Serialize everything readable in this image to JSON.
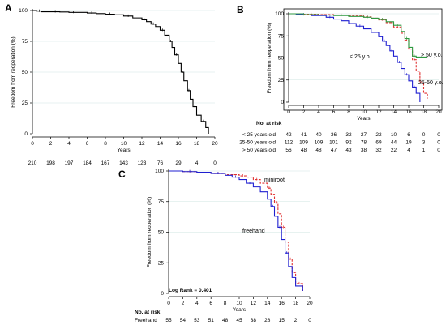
{
  "chart_data": [
    {
      "panel": "A",
      "type": "line",
      "step": true,
      "xlabel": "Years",
      "ylabel": "Freedom from reoperation (%)",
      "xlim": [
        0,
        20
      ],
      "ylim": [
        0,
        100
      ],
      "xticks": [
        0,
        2,
        4,
        6,
        8,
        10,
        12,
        14,
        16,
        18,
        20
      ],
      "yticks": [
        0,
        25,
        50,
        75,
        100
      ],
      "grid": true,
      "series": [
        {
          "color": "#000000",
          "x": [
            0,
            0.5,
            1,
            2,
            3,
            4,
            5,
            6,
            7,
            8,
            9,
            10,
            11,
            12,
            12.5,
            13,
            13.5,
            14,
            14.5,
            15,
            15.3,
            15.6,
            16,
            16.3,
            16.6,
            17,
            17.3,
            17.6,
            18,
            18.5,
            19,
            19.3
          ],
          "y": [
            100,
            99.5,
            99,
            99,
            98.8,
            98.5,
            98.5,
            98,
            97.5,
            97,
            96.5,
            95.5,
            94,
            92.5,
            91,
            89,
            87,
            84,
            80,
            75,
            70,
            64,
            57,
            50,
            43,
            35,
            28,
            22,
            15,
            10,
            5,
            0
          ]
        }
      ],
      "risk_table": {
        "header": "",
        "rows": [
          {
            "label": "",
            "values": [
              "210",
              "198",
              "197",
              "184",
              "167",
              "143",
              "123",
              "76",
              "29",
              "4",
              "0"
            ]
          }
        ]
      }
    },
    {
      "panel": "B",
      "type": "line",
      "step": true,
      "xlabel": "Years",
      "ylabel": "Freedom from reoperation (%)",
      "xlim": [
        0,
        20
      ],
      "ylim": [
        0,
        100
      ],
      "xticks": [
        0,
        2,
        4,
        6,
        8,
        10,
        12,
        14,
        16,
        18,
        20
      ],
      "yticks": [
        0,
        25,
        50,
        75,
        100
      ],
      "grid": true,
      "series": [
        {
          "name": "< 25 y.o.",
          "color": "#1f1fd0",
          "x": [
            0,
            1,
            3,
            5,
            6,
            7,
            8,
            9,
            10,
            11,
            12,
            12.5,
            13,
            13.5,
            14,
            14.5,
            15,
            15.5,
            16,
            16.5,
            17,
            17.5
          ],
          "y": [
            100,
            99,
            98,
            96,
            94,
            92,
            89,
            86,
            83,
            79,
            74,
            69,
            64,
            58,
            52,
            45,
            38,
            31,
            24,
            17,
            10,
            0
          ]
        },
        {
          "name": "25-50 y.o.",
          "color": "#e03030",
          "x": [
            0,
            2,
            4,
            6,
            8,
            10,
            11,
            12,
            13,
            14,
            15,
            15.5,
            16,
            16.5,
            17,
            17.5,
            18,
            18.5
          ],
          "y": [
            100,
            99.5,
            99,
            98.5,
            97.5,
            96.5,
            95,
            93,
            90,
            85,
            78,
            70,
            60,
            48,
            35,
            22,
            10,
            4
          ]
        },
        {
          "name": "> 50 y.o.",
          "color": "#2e9a40",
          "x": [
            0,
            2,
            4,
            6,
            8,
            10,
            11,
            12,
            13,
            14,
            15,
            15.5,
            16,
            16.5,
            17,
            18.5
          ],
          "y": [
            100,
            99,
            98.5,
            98,
            97,
            96,
            95,
            93.5,
            91,
            87,
            80,
            72,
            62,
            52,
            51,
            51
          ]
        }
      ],
      "risk_table": {
        "header": "No. at risk",
        "rows": [
          {
            "label": "< 25 years old",
            "values": [
              "42",
              "41",
              "40",
              "36",
              "32",
              "27",
              "22",
              "10",
              "6",
              "0",
              "0"
            ]
          },
          {
            "label": "25-50 years old",
            "values": [
              "112",
              "109",
              "109",
              "101",
              "92",
              "78",
              "69",
              "44",
              "19",
              "3",
              "0"
            ]
          },
          {
            "label": "> 50 years old",
            "values": [
              "56",
              "48",
              "48",
              "47",
              "43",
              "38",
              "32",
              "22",
              "4",
              "1",
              "0"
            ]
          }
        ]
      }
    },
    {
      "panel": "C",
      "type": "line",
      "step": true,
      "xlabel": "Years",
      "ylabel": "Freedom from reoperation (%)",
      "xlim": [
        0,
        20
      ],
      "ylim": [
        0,
        100
      ],
      "xticks": [
        0,
        2,
        4,
        6,
        8,
        10,
        12,
        14,
        16,
        18,
        20
      ],
      "yticks": [
        0,
        25,
        50,
        75,
        100
      ],
      "grid": true,
      "annotation": "Log Rank = 0.401",
      "series": [
        {
          "name": "miniroot",
          "color": "#e03030",
          "x": [
            0,
            2,
            4,
            6,
            8,
            10,
            11,
            12,
            13,
            14,
            14.5,
            15,
            15.5,
            16,
            16.5,
            17,
            17.5,
            18,
            19
          ],
          "y": [
            100,
            99.5,
            99,
            98,
            97,
            96,
            95,
            93,
            90,
            86,
            81,
            74,
            65,
            54,
            42,
            28,
            17,
            8,
            2
          ]
        },
        {
          "name": "freehand",
          "color": "#1f1fd0",
          "x": [
            0,
            2,
            4,
            6,
            8,
            9,
            10,
            11,
            12,
            13,
            14,
            14.5,
            15,
            15.5,
            16,
            16.5,
            17,
            17.5,
            18,
            19
          ],
          "y": [
            100,
            99.5,
            99,
            98,
            96.5,
            95,
            93,
            90,
            87,
            83,
            77,
            71,
            63,
            54,
            44,
            33,
            22,
            13,
            6,
            2
          ]
        }
      ],
      "risk_table": {
        "header": "No. at risk",
        "rows": [
          {
            "label": "Freehand",
            "values": [
              "55",
              "54",
              "53",
              "51",
              "48",
              "45",
              "38",
              "28",
              "15",
              "2",
              "0"
            ]
          }
        ]
      }
    }
  ],
  "labels": {
    "series_b_lt25": "< 25 y.o.",
    "series_b_gt50": "> 50 y.o.",
    "series_b_mid": "25-50 y.o.",
    "series_c_miniroot": "miniroot",
    "series_c_freehand": "freehand"
  }
}
